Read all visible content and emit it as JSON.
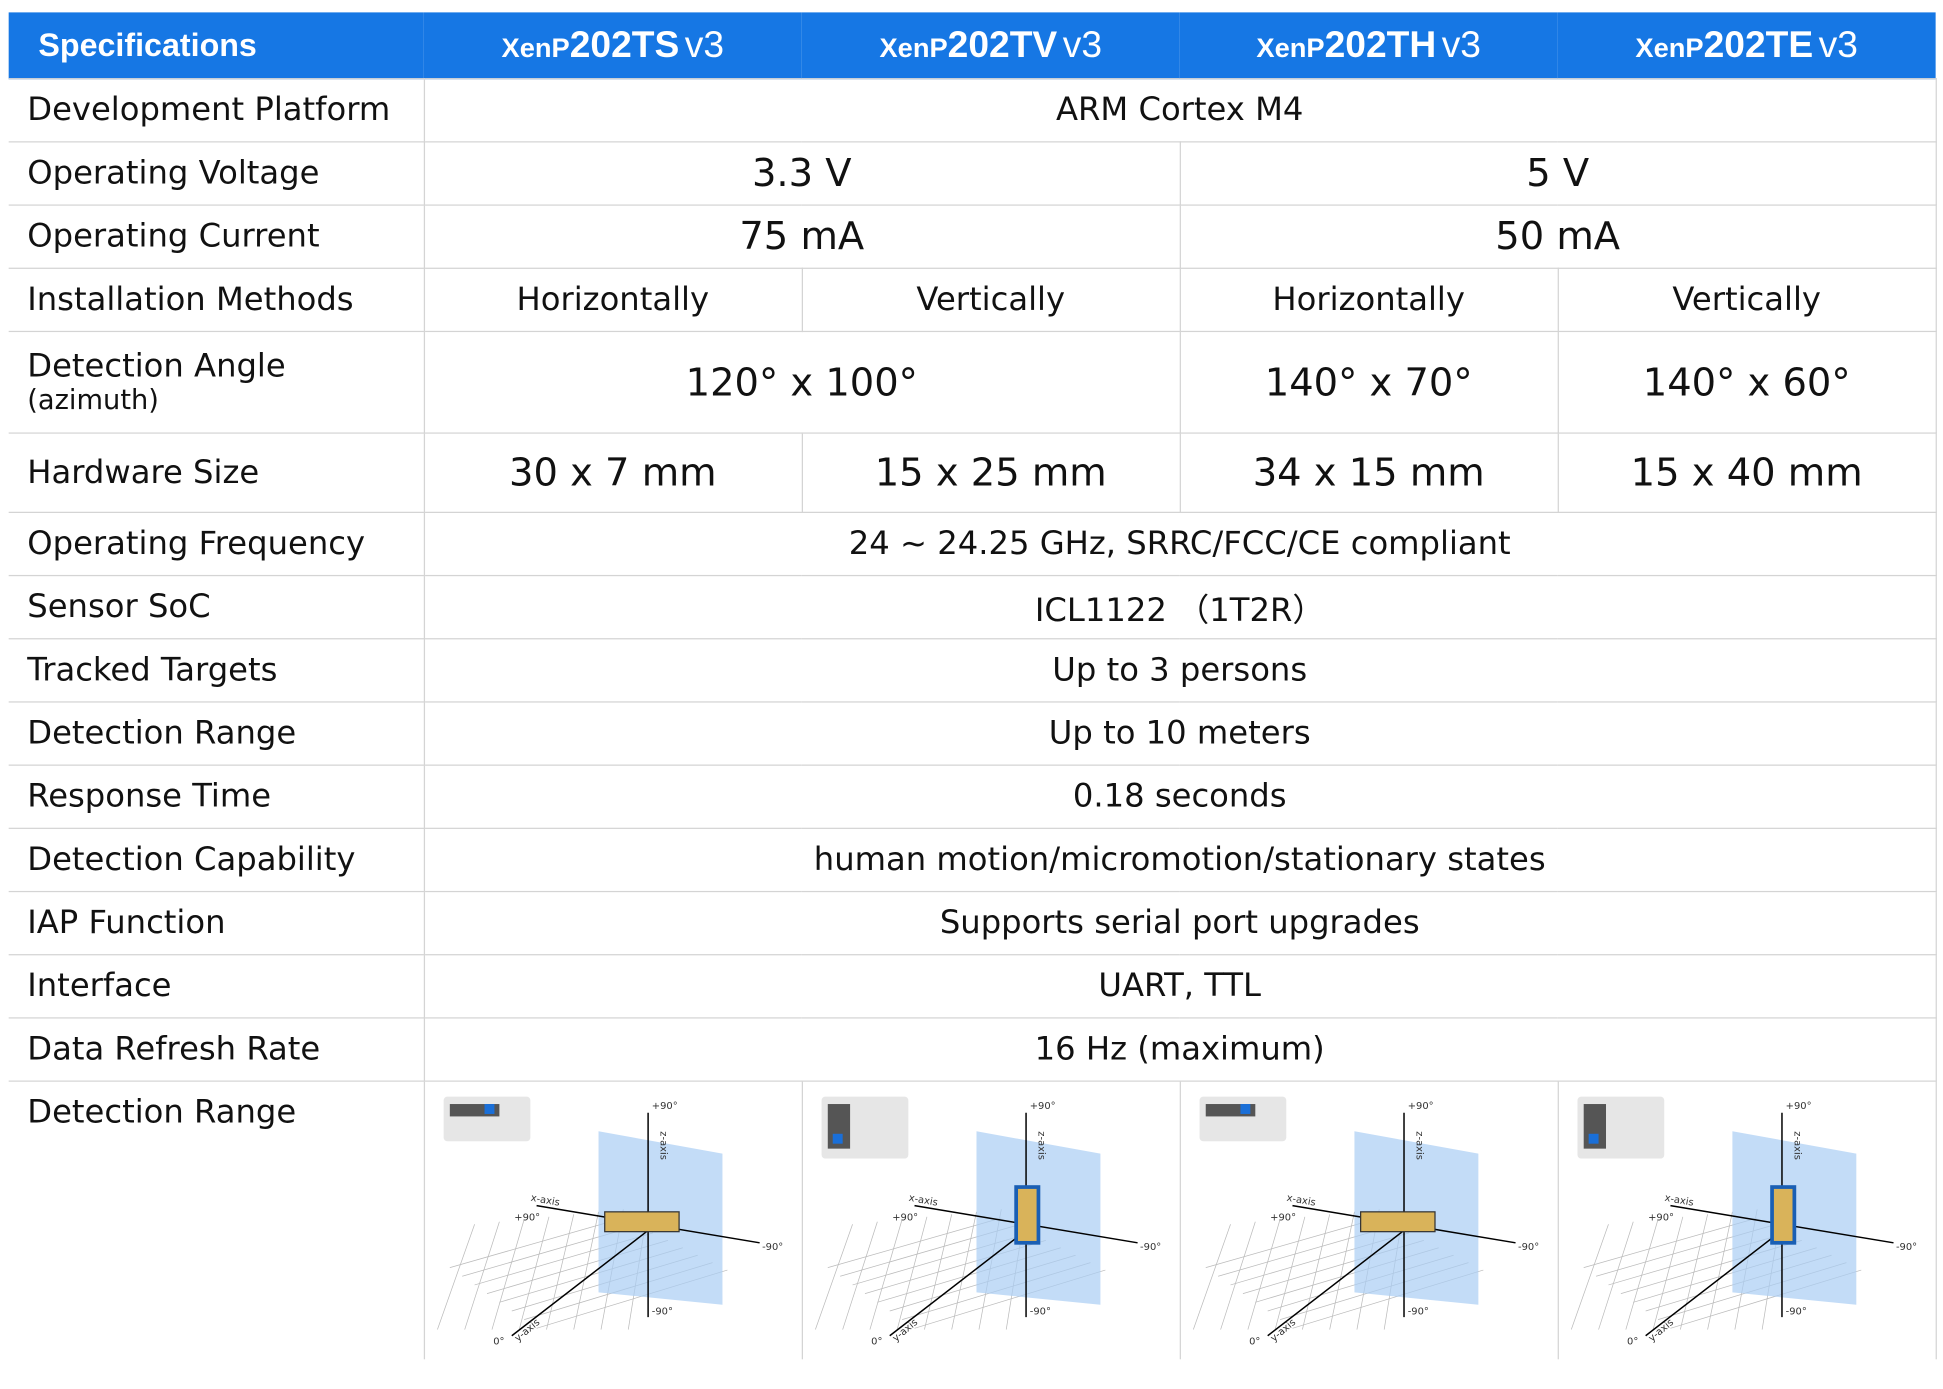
{
  "header": {
    "title": "Specifications",
    "columns": [
      {
        "prefix": "XenP",
        "model": "202TS",
        "version": "v3"
      },
      {
        "prefix": "XenP",
        "model": "202TV",
        "version": "v3"
      },
      {
        "prefix": "XenP",
        "model": "202TH",
        "version": "v3"
      },
      {
        "prefix": "XenP",
        "model": "202TE",
        "version": "v3"
      }
    ]
  },
  "rows": [
    {
      "label": "Development Platform",
      "cells": [
        {
          "text": "ARM Cortex M4",
          "span": 4
        }
      ]
    },
    {
      "label": "Operating Voltage",
      "cells": [
        {
          "text": "3.3 V",
          "span": 2
        },
        {
          "text": "5 V",
          "span": 2
        }
      ]
    },
    {
      "label": "Operating Current",
      "cells": [
        {
          "text": "75 mA",
          "span": 2
        },
        {
          "text": "50 mA",
          "span": 2
        }
      ]
    },
    {
      "label": "Installation Methods",
      "cells": [
        {
          "text": "Horizontally",
          "span": 1
        },
        {
          "text": "Vertically",
          "span": 1
        },
        {
          "text": "Horizontally",
          "span": 1
        },
        {
          "text": "Vertically",
          "span": 1
        }
      ]
    },
    {
      "label": "Detection Angle",
      "sublabel": "(azimuth)",
      "cells": [
        {
          "text": "120° x 100°",
          "span": 2
        },
        {
          "text": "140° x 70°",
          "span": 1
        },
        {
          "text": "140° x 60°",
          "span": 1
        }
      ]
    },
    {
      "label": "Hardware Size",
      "cells": [
        {
          "text": "30 x 7 mm",
          "span": 1
        },
        {
          "text": "15 x 25 mm",
          "span": 1
        },
        {
          "text": "34 x 15 mm",
          "span": 1
        },
        {
          "text": "15 x 40 mm",
          "span": 1
        }
      ]
    },
    {
      "label": "Operating Frequency",
      "cells": [
        {
          "text": "24 ~ 24.25 GHz, SRRC/FCC/CE compliant",
          "span": 4
        }
      ]
    },
    {
      "label": "Sensor SoC",
      "cells": [
        {
          "text": "ICL1122 （1T2R）",
          "span": 4
        }
      ]
    },
    {
      "label": "Tracked Targets",
      "cells": [
        {
          "text": "Up to 3 persons",
          "span": 4
        }
      ]
    },
    {
      "label": "Detection Range",
      "cells": [
        {
          "text": "Up to 10 meters",
          "span": 4
        }
      ]
    },
    {
      "label": "Response Time",
      "cells": [
        {
          "text": "0.18 seconds",
          "span": 4
        }
      ]
    },
    {
      "label": "Detection Capability",
      "cells": [
        {
          "text": "human motion/micromotion/stationary states",
          "span": 4
        }
      ]
    },
    {
      "label": "IAP Function",
      "cells": [
        {
          "text": "Supports serial port upgrades",
          "span": 4
        }
      ]
    },
    {
      "label": "Interface",
      "cells": [
        {
          "text": "UART, TTL",
          "span": 4
        }
      ]
    },
    {
      "label": "Data Refresh Rate",
      "cells": [
        {
          "text": "16 Hz (maximum)",
          "span": 4
        }
      ]
    }
  ],
  "diagram_row": {
    "label": "Detection Range"
  },
  "diagram_labels": {
    "plus90": "+90°",
    "minus90": "-90°",
    "x_axis": "x-axis",
    "y_axis": "y-axis",
    "z_axis": "z-axis",
    "origin": "0°"
  }
}
